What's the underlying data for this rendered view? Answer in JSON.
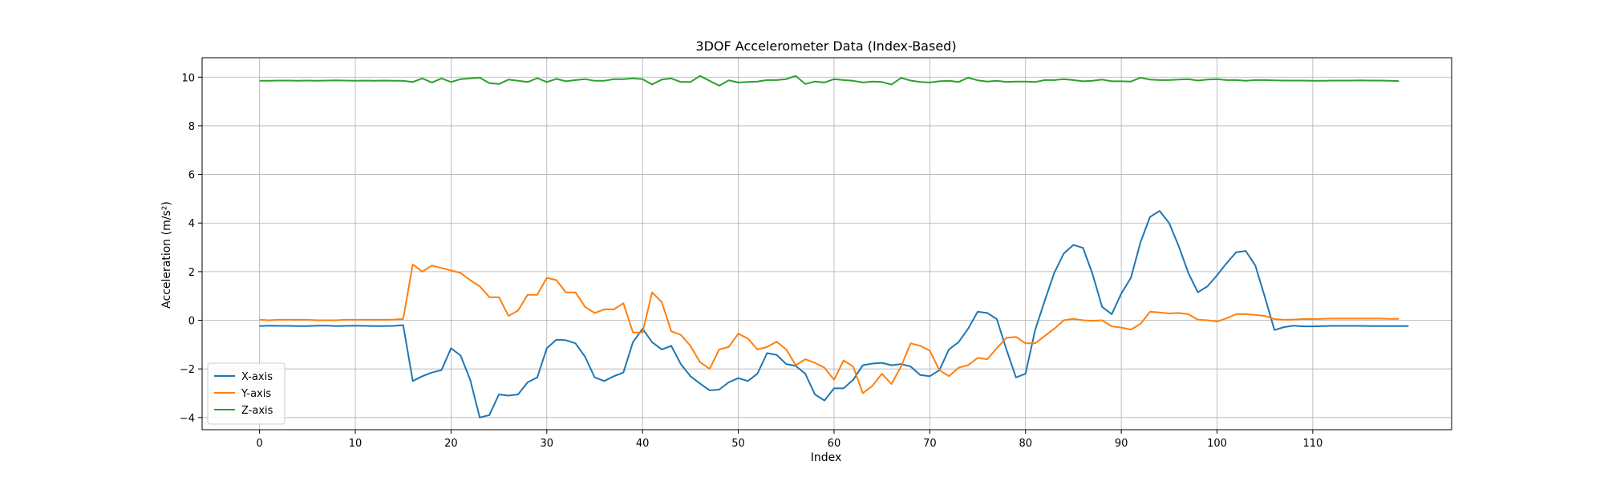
{
  "chart_data": {
    "type": "line",
    "title": "3DOF Accelerometer Data (Index-Based)",
    "xlabel": "Index",
    "ylabel": "Acceleration (m/s²)",
    "xlim": [
      -6,
      124.5
    ],
    "ylim": [
      -4.5,
      10.8
    ],
    "xticks": [
      0,
      10,
      20,
      30,
      40,
      50,
      60,
      70,
      80,
      90,
      100,
      110
    ],
    "yticks": [
      -4,
      -2,
      0,
      2,
      4,
      6,
      8,
      10
    ],
    "grid": true,
    "legend": "lower-left",
    "series": [
      {
        "name": "X-axis",
        "color": "#1f77b4",
        "values": [
          -0.24,
          -0.22,
          -0.23,
          -0.23,
          -0.24,
          -0.24,
          -0.22,
          -0.22,
          -0.24,
          -0.23,
          -0.22,
          -0.23,
          -0.24,
          -0.24,
          -0.23,
          -0.2,
          -2.5,
          -2.3,
          -2.15,
          -2.05,
          -1.15,
          -1.45,
          -2.45,
          -4.0,
          -3.9,
          -3.05,
          -3.1,
          -3.05,
          -2.55,
          -2.35,
          -1.15,
          -0.8,
          -0.82,
          -0.95,
          -1.5,
          -2.35,
          -2.5,
          -2.3,
          -2.15,
          -0.9,
          -0.35,
          -0.9,
          -1.2,
          -1.05,
          -1.8,
          -2.3,
          -2.6,
          -2.88,
          -2.85,
          -2.55,
          -2.38,
          -2.5,
          -2.2,
          -1.35,
          -1.42,
          -1.8,
          -1.88,
          -2.2,
          -3.05,
          -3.3,
          -2.8,
          -2.8,
          -2.45,
          -1.85,
          -1.78,
          -1.75,
          -1.85,
          -1.8,
          -1.9,
          -2.25,
          -2.3,
          -2.05,
          -1.2,
          -0.9,
          -0.35,
          0.35,
          0.3,
          0.05,
          -1.2,
          -2.35,
          -2.2,
          -0.4,
          0.8,
          1.95,
          2.75,
          3.1,
          2.98,
          1.9,
          0.55,
          0.25,
          1.1,
          1.75,
          3.2,
          4.25,
          4.5,
          4.0,
          3.05,
          1.95,
          1.15,
          1.4,
          1.85,
          2.35,
          2.8,
          2.85,
          2.25,
          0.95,
          -0.4,
          -0.28,
          -0.22,
          -0.25,
          -0.25,
          -0.24,
          -0.23,
          -0.23,
          -0.23,
          -0.23,
          -0.24,
          -0.24,
          -0.24,
          -0.24,
          -0.24
        ]
      },
      {
        "name": "Y-axis",
        "color": "#ff7f0e",
        "values": [
          0.02,
          0.0,
          0.02,
          0.02,
          0.02,
          0.02,
          0.0,
          0.0,
          0.0,
          0.02,
          0.02,
          0.02,
          0.02,
          0.02,
          0.03,
          0.05,
          2.3,
          2.0,
          2.25,
          2.15,
          2.05,
          1.95,
          1.65,
          1.4,
          0.95,
          0.95,
          0.18,
          0.4,
          1.05,
          1.05,
          1.75,
          1.65,
          1.15,
          1.15,
          0.55,
          0.3,
          0.45,
          0.45,
          0.7,
          -0.5,
          -0.5,
          1.15,
          0.75,
          -0.45,
          -0.6,
          -1.05,
          -1.72,
          -2.0,
          -1.2,
          -1.1,
          -0.55,
          -0.75,
          -1.2,
          -1.1,
          -0.88,
          -1.2,
          -1.85,
          -1.6,
          -1.75,
          -1.95,
          -2.45,
          -1.65,
          -1.9,
          -3.0,
          -2.7,
          -2.2,
          -2.62,
          -1.9,
          -0.95,
          -1.05,
          -1.25,
          -2.05,
          -2.3,
          -1.95,
          -1.85,
          -1.55,
          -1.6,
          -1.15,
          -0.72,
          -0.68,
          -0.95,
          -0.95,
          -0.65,
          -0.35,
          0.0,
          0.06,
          0.0,
          -0.02,
          0.0,
          -0.25,
          -0.3,
          -0.38,
          -0.15,
          0.35,
          0.32,
          0.28,
          0.3,
          0.25,
          0.02,
          0.0,
          -0.05,
          0.08,
          0.25,
          0.25,
          0.22,
          0.18,
          0.05,
          0.02,
          0.03,
          0.05,
          0.05,
          0.06,
          0.07,
          0.07,
          0.07,
          0.07,
          0.07,
          0.07,
          0.06,
          0.06
        ]
      },
      {
        "name": "Z-axis",
        "color": "#2ca02c",
        "values": [
          9.85,
          9.85,
          9.86,
          9.86,
          9.85,
          9.86,
          9.85,
          9.86,
          9.87,
          9.86,
          9.85,
          9.86,
          9.85,
          9.86,
          9.85,
          9.85,
          9.8,
          9.95,
          9.78,
          9.95,
          9.8,
          9.92,
          9.95,
          9.98,
          9.75,
          9.72,
          9.9,
          9.85,
          9.8,
          9.96,
          9.8,
          9.93,
          9.83,
          9.88,
          9.92,
          9.85,
          9.85,
          9.92,
          9.92,
          9.95,
          9.92,
          9.7,
          9.9,
          9.95,
          9.8,
          9.8,
          10.05,
          9.85,
          9.65,
          9.87,
          9.78,
          9.8,
          9.82,
          9.88,
          9.88,
          9.92,
          10.05,
          9.72,
          9.82,
          9.78,
          9.92,
          9.88,
          9.85,
          9.78,
          9.82,
          9.8,
          9.7,
          9.97,
          9.86,
          9.8,
          9.78,
          9.83,
          9.85,
          9.8,
          9.98,
          9.87,
          9.82,
          9.85,
          9.8,
          9.82,
          9.82,
          9.8,
          9.88,
          9.88,
          9.92,
          9.88,
          9.83,
          9.85,
          9.9,
          9.83,
          9.83,
          9.82,
          9.98,
          9.9,
          9.88,
          9.88,
          9.9,
          9.92,
          9.86,
          9.9,
          9.92,
          9.88,
          9.88,
          9.85,
          9.88,
          9.88,
          9.87,
          9.86,
          9.86,
          9.86,
          9.85,
          9.85,
          9.86,
          9.86,
          9.86,
          9.87,
          9.86,
          9.86,
          9.85,
          9.84
        ]
      }
    ]
  }
}
